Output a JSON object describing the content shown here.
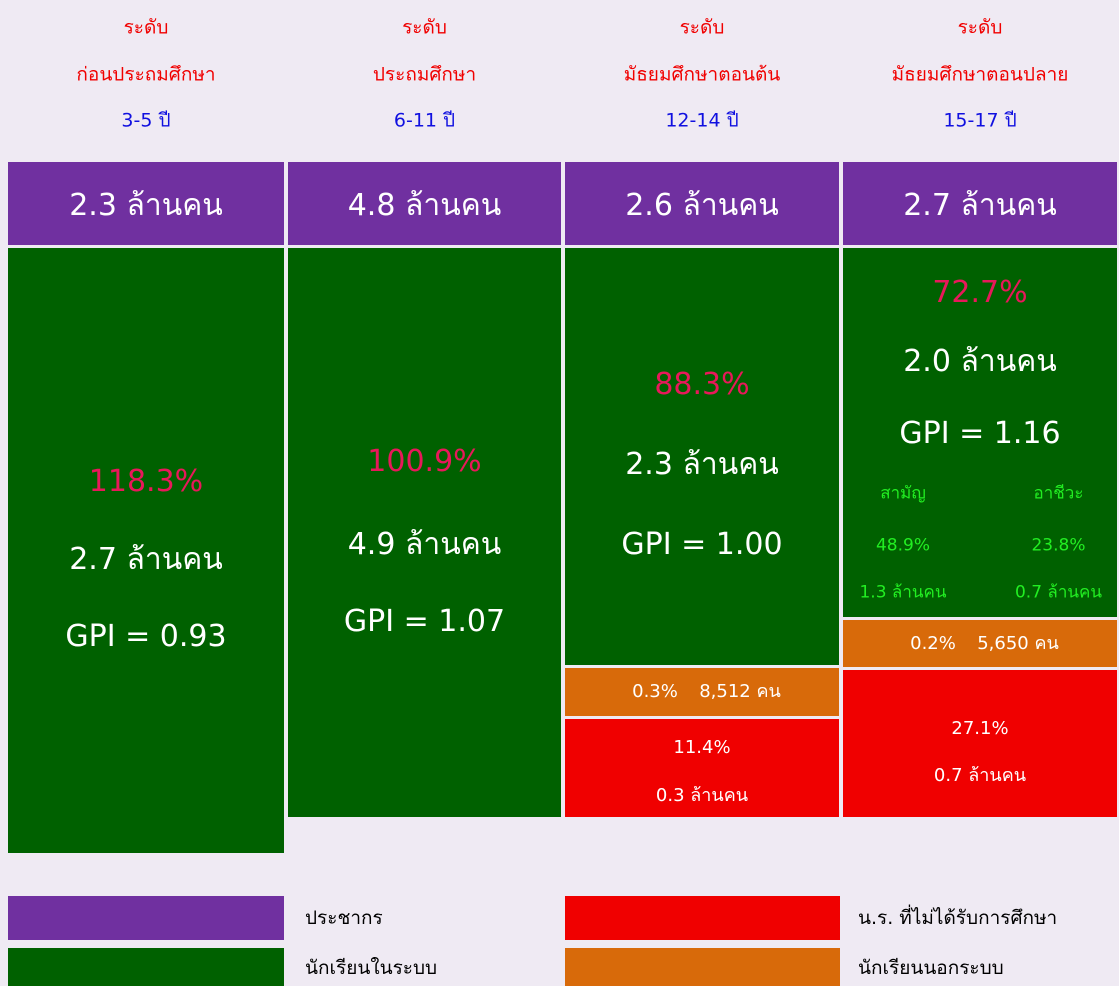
{
  "columns": [
    {
      "level": "ระดับ",
      "name": "ก่อนประถมศึกษา",
      "age": "3-5 ปี",
      "population": "2.3 ล้านคน",
      "enrolled": {
        "percent": "118.3%",
        "count": "2.7 ล้านคน",
        "gpi": "GPI = 0.93"
      }
    },
    {
      "level": "ระดับ",
      "name": "ประถมศึกษา",
      "age": "6-11 ปี",
      "population": "4.8 ล้านคน",
      "enrolled": {
        "percent": "100.9%",
        "count": "4.9 ล้านคน",
        "gpi": "GPI = 1.07"
      }
    },
    {
      "level": "ระดับ",
      "name": "มัธยมศึกษาตอนต้น",
      "age": "12-14 ปี",
      "population": "2.6 ล้านคน",
      "enrolled": {
        "percent": "88.3%",
        "count": "2.3 ล้านคน",
        "gpi": "GPI = 1.00"
      },
      "out_of_system": {
        "percent": "0.3%",
        "count": "8,512 คน"
      },
      "not_schooled": {
        "percent": "11.4%",
        "count": "0.3 ล้านคน"
      }
    },
    {
      "level": "ระดับ",
      "name": "มัธยมศึกษาตอนปลาย",
      "age": "15-17 ปี",
      "population": "2.7 ล้านคน",
      "enrolled": {
        "percent": "72.7%",
        "count": "2.0 ล้านคน",
        "gpi": "GPI = 1.16",
        "streams": [
          {
            "name": "สามัญ",
            "percent": "48.9%",
            "count": "1.3 ล้านคน"
          },
          {
            "name": "อาชีวะ",
            "percent": "23.8%",
            "count": "0.7 ล้านคน"
          }
        ]
      },
      "out_of_system": {
        "percent": "0.2%",
        "count": "5,650 คน"
      },
      "not_schooled": {
        "percent": "27.1%",
        "count": "0.7 ล้านคน"
      }
    }
  ],
  "legend": [
    "ประชากร",
    "นักเรียนในระบบ",
    "น.ร. ที่ไม่ได้รับการศึกษา",
    "นักเรียนนอกระบบ"
  ]
}
